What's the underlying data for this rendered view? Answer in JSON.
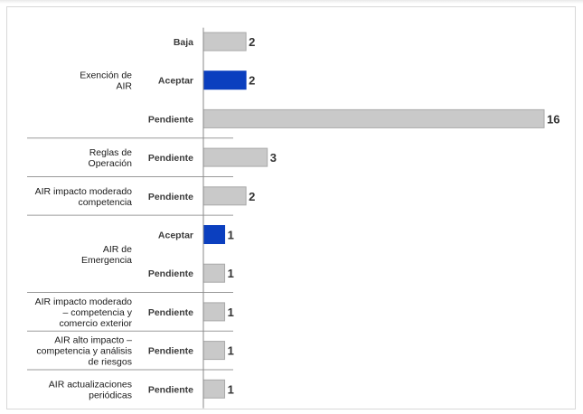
{
  "chart_data": {
    "type": "bar",
    "orientation": "horizontal",
    "title": "",
    "xlabel": "",
    "ylabel": "",
    "xlim": [
      0,
      16
    ],
    "grid": false,
    "legend": "none",
    "colors": {
      "highlight": "#0b3fbf",
      "default": "#c9c9c9",
      "border": "#a9a9a9"
    },
    "groups": [
      {
        "label": [
          "Exención de",
          "AIR"
        ],
        "rows": [
          {
            "category": "Baja",
            "value": 2,
            "highlight": false
          },
          {
            "category": "Aceptar",
            "value": 2,
            "highlight": true
          },
          {
            "category": "Pendiente",
            "value": 16,
            "highlight": false
          }
        ]
      },
      {
        "label": [
          "Reglas de",
          "Operación"
        ],
        "rows": [
          {
            "category": "Pendiente",
            "value": 3,
            "highlight": false
          }
        ]
      },
      {
        "label": [
          "AIR impacto moderado",
          "competencia"
        ],
        "rows": [
          {
            "category": "Pendiente",
            "value": 2,
            "highlight": false
          }
        ]
      },
      {
        "label": [
          "AIR de",
          "Emergencia"
        ],
        "rows": [
          {
            "category": "Aceptar",
            "value": 1,
            "highlight": true
          },
          {
            "category": "Pendiente",
            "value": 1,
            "highlight": false
          }
        ]
      },
      {
        "label": [
          "AIR impacto moderado",
          "– competencia y",
          "comercio exterior"
        ],
        "rows": [
          {
            "category": "Pendiente",
            "value": 1,
            "highlight": false
          }
        ]
      },
      {
        "label": [
          "AIR alto impacto –",
          "competencia y análisis",
          "de riesgos"
        ],
        "rows": [
          {
            "category": "Pendiente",
            "value": 1,
            "highlight": false
          }
        ]
      },
      {
        "label": [
          "AIR actualizaciones",
          "periódicas"
        ],
        "rows": [
          {
            "category": "Pendiente",
            "value": 1,
            "highlight": false
          }
        ]
      }
    ]
  }
}
